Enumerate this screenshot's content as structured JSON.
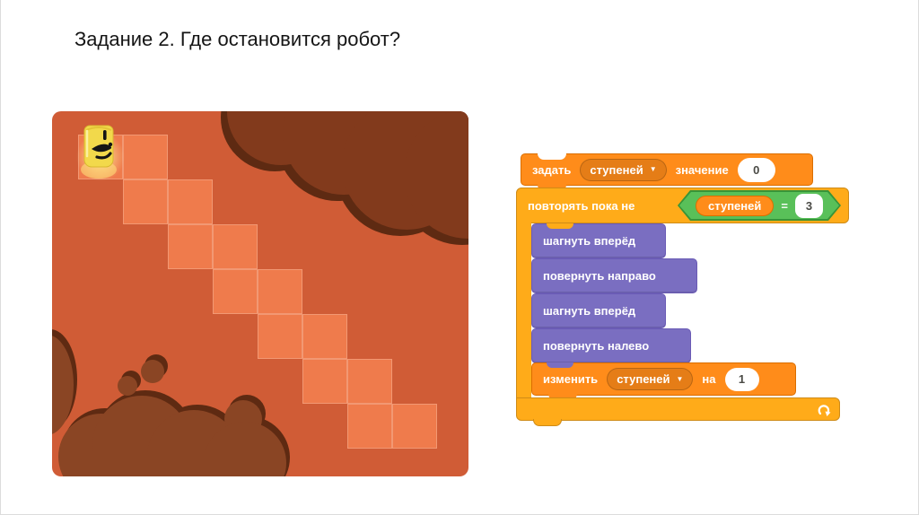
{
  "title": "Задание 2. Где остановится робот?",
  "map": {
    "robot": {
      "row": 0,
      "col": 0
    },
    "cells": [
      [
        0,
        0
      ],
      [
        0,
        1
      ],
      [
        1,
        1
      ],
      [
        1,
        2
      ],
      [
        2,
        2
      ],
      [
        2,
        3
      ],
      [
        3,
        3
      ],
      [
        3,
        4
      ],
      [
        4,
        4
      ],
      [
        4,
        5
      ],
      [
        5,
        5
      ],
      [
        5,
        6
      ],
      [
        6,
        6
      ],
      [
        6,
        7
      ]
    ]
  },
  "script": {
    "set_block": {
      "keyword": "задать",
      "variable": "ступеней",
      "value_label": "значение",
      "value": "0"
    },
    "repeat_block": {
      "label": "повторять пока не"
    },
    "condition": {
      "variable": "ступеней",
      "operator": "=",
      "value": "3"
    },
    "body": [
      {
        "label": "шагнуть вперёд"
      },
      {
        "label": "повернуть направо"
      },
      {
        "label": "шагнуть вперёд"
      },
      {
        "label": "повернуть налево"
      }
    ],
    "change_block": {
      "keyword": "изменить",
      "variable": "ступеней",
      "by_label": "на",
      "value": "1"
    }
  },
  "icons": {
    "dropdown_arrow": "▼"
  },
  "colors": {
    "orange": "#FF8C1A",
    "orange-dark": "#DB6E00",
    "golden": "#FFAB19",
    "golden-dark": "#CF8B17",
    "green": "#59C059",
    "green-dark": "#389438",
    "purple": "#7A6EC1",
    "purple-dark": "#6A5BB5",
    "map-bg": "#D05C36",
    "cell": "#EF7B4C",
    "ground": "#8A4524",
    "cloud": "#823A1C",
    "shadow": "#5E2A12",
    "pill-text": "#4a4a45"
  }
}
